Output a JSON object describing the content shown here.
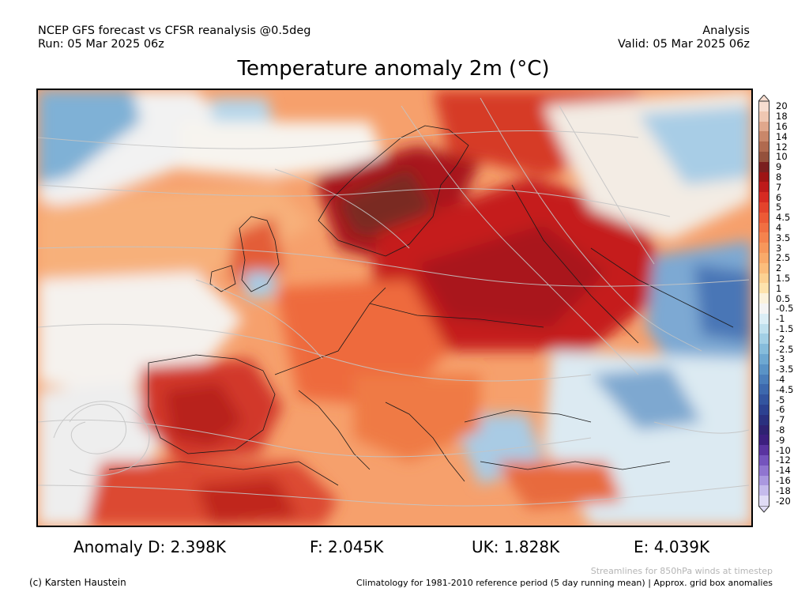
{
  "header": {
    "left_line1": "NCEP GFS forecast vs CFSR reanalysis @0.5deg",
    "left_line2": "Run: 05 Mar 2025 06z",
    "right_line1": "Analysis",
    "right_line2": "Valid: 05 Mar 2025 06z"
  },
  "title": "Temperature anomaly 2m (°C)",
  "colorbar": {
    "levels": [
      {
        "label": "20",
        "color": "#f7ddd0"
      },
      {
        "label": "18",
        "color": "#efc7b2"
      },
      {
        "label": "16",
        "color": "#e0a78c"
      },
      {
        "label": "14",
        "color": "#c9876a"
      },
      {
        "label": "12",
        "color": "#b06a4f"
      },
      {
        "label": "10",
        "color": "#94513c"
      },
      {
        "label": "9",
        "color": "#7a1f1f"
      },
      {
        "label": "8",
        "color": "#9e1414"
      },
      {
        "label": "7",
        "color": "#bd1a1a"
      },
      {
        "label": "6",
        "color": "#d62a22"
      },
      {
        "label": "5",
        "color": "#e3432c"
      },
      {
        "label": "4.5",
        "color": "#ec5a36"
      },
      {
        "label": "4",
        "color": "#f16f42"
      },
      {
        "label": "3.5",
        "color": "#f5834e"
      },
      {
        "label": "3",
        "color": "#f7975b"
      },
      {
        "label": "2.5",
        "color": "#f9aa6a"
      },
      {
        "label": "2",
        "color": "#fbbd7c"
      },
      {
        "label": "1.5",
        "color": "#fcd192"
      },
      {
        "label": "1",
        "color": "#fde3ad"
      },
      {
        "label": "0.5",
        "color": "#fbf2dc"
      },
      {
        "label": "-0.5",
        "color": "#f4f4f4"
      },
      {
        "label": "-1",
        "color": "#dbeef6"
      },
      {
        "label": "-1.5",
        "color": "#bfe0ee"
      },
      {
        "label": "-2",
        "color": "#a2cfe5"
      },
      {
        "label": "-2.5",
        "color": "#86bcdb"
      },
      {
        "label": "-3",
        "color": "#6ea8d1"
      },
      {
        "label": "-3.5",
        "color": "#5a93c6"
      },
      {
        "label": "-4",
        "color": "#4a7dba"
      },
      {
        "label": "-4.5",
        "color": "#3d68ad"
      },
      {
        "label": "-5",
        "color": "#33549f"
      },
      {
        "label": "-6",
        "color": "#2c4190"
      },
      {
        "label": "-7",
        "color": "#2a307f"
      },
      {
        "label": "-8",
        "color": "#2f2272"
      },
      {
        "label": "-9",
        "color": "#3d1f7f"
      },
      {
        "label": "-10",
        "color": "#5a34a0"
      },
      {
        "label": "-12",
        "color": "#7554bd"
      },
      {
        "label": "-14",
        "color": "#9075d0"
      },
      {
        "label": "-16",
        "color": "#aa98df"
      },
      {
        "label": "-18",
        "color": "#c5bbec"
      },
      {
        "label": "-20",
        "color": "#e0dcf6"
      }
    ]
  },
  "stats": {
    "d": "Anomaly D: 2.398K",
    "f": "F: 2.045K",
    "uk": "UK: 1.828K",
    "e": "E: 4.039K"
  },
  "footer": {
    "copyright": "(c) Karsten Haustein",
    "streamlines_note": "Streamlines for 850hPa winds at timestep",
    "climatology_note": "Climatology for 1981-2010 reference period (5 day running mean) | Approx. grid box anomalies"
  }
}
